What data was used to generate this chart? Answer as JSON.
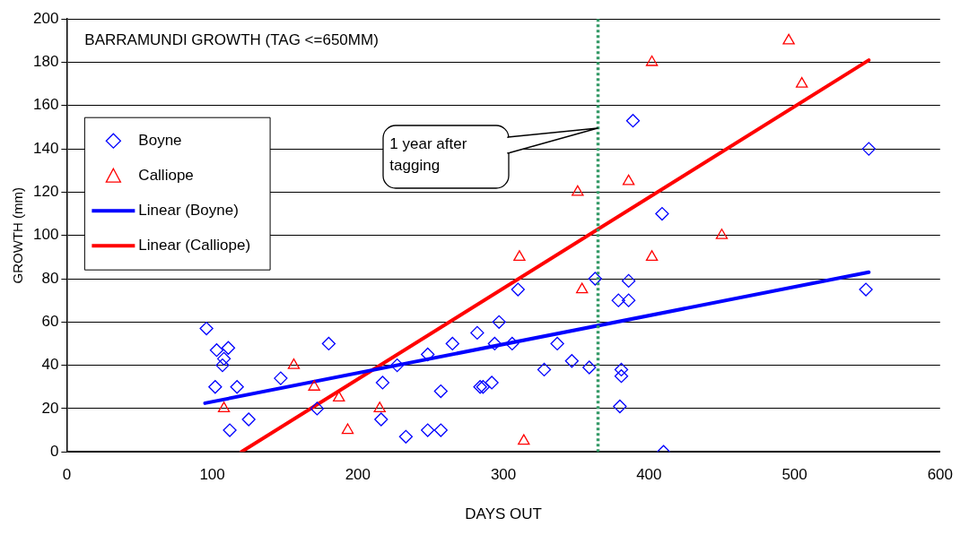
{
  "chart_data": {
    "type": "scatter",
    "title": "BARRAMUNDI GROWTH (TAG <=650MM)",
    "xlabel": "DAYS OUT",
    "ylabel": "GROWTH (mm)",
    "xlim": [
      0,
      600
    ],
    "xticks": [
      0,
      100,
      200,
      300,
      400,
      500,
      600
    ],
    "ylim": [
      0,
      200
    ],
    "yticks": [
      0,
      20,
      40,
      60,
      80,
      100,
      120,
      140,
      160,
      180,
      200
    ],
    "grid": "y",
    "legend": "top left",
    "series": [
      {
        "name": "Boyne",
        "type": "scatter",
        "marker": "diamond",
        "color": "#0000ff",
        "x": [
          96,
          102,
          103,
          111,
          108,
          107,
          112,
          117,
          125,
          147,
          180,
          172,
          217,
          216,
          227,
          233,
          248,
          248,
          257,
          257,
          265,
          282,
          297,
          294,
          284,
          286,
          292,
          306,
          310,
          328,
          337,
          347,
          359,
          363,
          386,
          379,
          386,
          381,
          381,
          380,
          410,
          409,
          389,
          551,
          549
        ],
        "values": [
          57,
          30,
          47,
          48,
          43,
          40,
          10,
          30,
          15,
          34,
          50,
          20,
          32,
          15,
          40,
          7,
          45,
          10,
          10,
          28,
          50,
          55,
          60,
          50,
          30,
          30,
          32,
          50,
          75,
          38,
          50,
          42,
          39,
          80,
          79,
          70,
          70,
          38,
          35,
          21,
          0,
          110,
          153,
          140,
          75
        ]
      },
      {
        "name": "Calliope",
        "type": "scatter",
        "marker": "triangle",
        "color": "#ff0000",
        "x": [
          108,
          156,
          170,
          187,
          193,
          215,
          311,
          314,
          351,
          354,
          386,
          402,
          402,
          450,
          496,
          505
        ],
        "values": [
          20,
          40,
          30,
          25,
          10,
          20,
          90,
          5,
          120,
          75,
          125,
          180,
          90,
          100,
          190,
          170
        ]
      },
      {
        "name": "Linear (Boyne)",
        "type": "line",
        "marker": "none",
        "color": "#0000ff",
        "x": [
          95,
          551
        ],
        "values": [
          22.5,
          83
        ]
      },
      {
        "name": "Linear (Calliope)",
        "type": "line",
        "marker": "none",
        "color": "#ff0000",
        "x": [
          120,
          551
        ],
        "values": [
          0,
          181
        ]
      }
    ],
    "ref_lines": [
      {
        "axis": "x",
        "value": 365,
        "color": "#339966",
        "line_style": "dotted"
      }
    ],
    "annotations": [
      "1 year after tagging"
    ]
  }
}
